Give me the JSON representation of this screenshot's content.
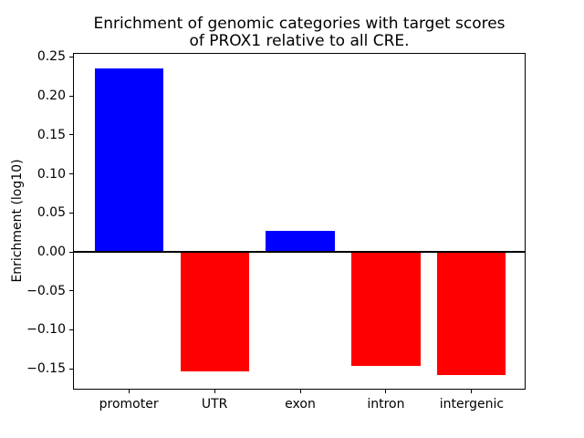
{
  "chart_data": {
    "type": "bar",
    "title_lines": [
      "Enrichment of genomic categories with target scores",
      "of PROX1 relative to all CRE."
    ],
    "title": "Enrichment of genomic categories with target scores of PROX1 relative to all CRE.",
    "xlabel": "",
    "ylabel": "Enrichment (log10)",
    "categories": [
      "promoter",
      "UTR",
      "exon",
      "intron",
      "intergenic"
    ],
    "values": [
      0.235,
      -0.153,
      0.027,
      -0.146,
      -0.158
    ],
    "bar_colors": [
      "#0000ff",
      "#ff0000",
      "#0000ff",
      "#ff0000",
      "#ff0000"
    ],
    "positive_color": "#0000ff",
    "negative_color": "#ff0000",
    "ylim": [
      -0.178,
      0.254
    ],
    "yticks": [
      0.25,
      0.2,
      0.15,
      0.1,
      0.05,
      0.0,
      -0.05,
      -0.1,
      -0.15
    ],
    "ytick_labels": [
      "0.25",
      "0.20",
      "0.15",
      "0.10",
      "0.05",
      "0.00",
      "−0.05",
      "−0.10",
      "−0.15"
    ],
    "bar_width_fraction": 0.8,
    "x_margin_fraction": 0.64,
    "grid": false,
    "legend": null,
    "zero_line": true,
    "axis_color": "#000000",
    "background_color": "#ffffff"
  }
}
